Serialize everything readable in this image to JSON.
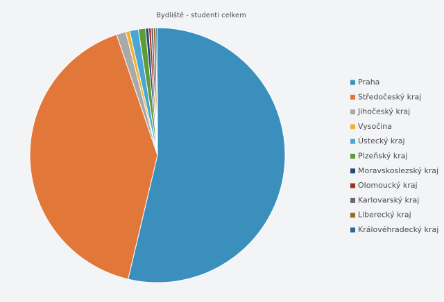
{
  "chart_data": {
    "type": "pie",
    "title": "Bydliště - studenti celkem",
    "categories": [
      "Praha",
      "Středočeský kraj",
      "Jihočeský kraj",
      "Vysočina",
      "Ústecký kraj",
      "Plzeňský kraj",
      "Moravskoslezský kraj",
      "Olomoucký kraj",
      "Karlovarský kraj",
      "Liberecký kraj",
      "Královéhradecký kraj"
    ],
    "values": [
      53.7,
      41.1,
      1.2,
      0.5,
      1.1,
      0.9,
      0.4,
      0.3,
      0.3,
      0.3,
      0.2
    ],
    "colors": [
      "#3a8fbd",
      "#e2773a",
      "#a9a9a9",
      "#f1b32e",
      "#4aa6d4",
      "#5e9c36",
      "#27487a",
      "#a1321f",
      "#6a6a6a",
      "#9c6a1e",
      "#2a679b"
    ],
    "legend": "right"
  }
}
